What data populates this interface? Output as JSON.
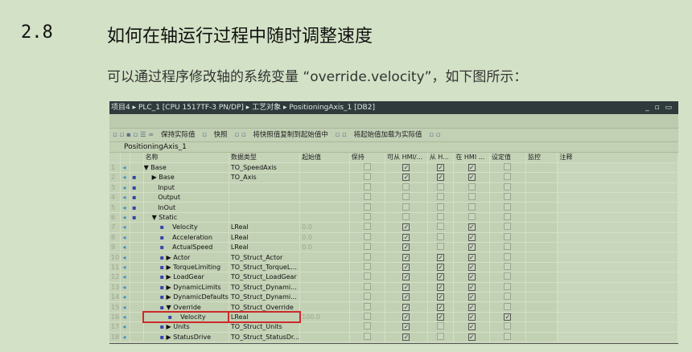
{
  "heading": {
    "number": "2.8",
    "title": "如何在轴运行过程中随时调整速度"
  },
  "paragraph": "可以通过程序修改轴的系统变量 “override.velocity”，如下图所示：",
  "screenshot": {
    "breadcrumb": "项目4 ▸ PLC_1 [CPU 1517TF-3 PN/DP] ▸ 工艺对象 ▸ PositioningAxis_1 [DB2]",
    "window_controls": "_ ▫ ▭",
    "toolbar": {
      "keep_actual": "保持实际值",
      "snapshot": "快照",
      "copy_snapshot": "将快照值复制到起始值中",
      "load_start": "将起始值加载为实际值"
    },
    "db_name": "PositioningAxis_1",
    "columns": [
      "名称",
      "数据类型",
      "起始值",
      "保持",
      "可从 HMI/...",
      "从 H...",
      "在 HMI ...",
      "设定值",
      "监控",
      "注释"
    ],
    "rows": [
      {
        "n": "1",
        "name": "Base",
        "type": "TO_SpeedAxis",
        "start": "",
        "lvl": 0,
        "exp": "▼",
        "dot": false,
        "hmi": [
          1,
          1,
          1
        ],
        "set": 0
      },
      {
        "n": "2",
        "name": "Base",
        "type": "TO_Axis",
        "start": "",
        "lvl": 1,
        "exp": "▶",
        "dot": true,
        "hmi": [
          1,
          1,
          1
        ],
        "set": 0
      },
      {
        "n": "3",
        "name": "Input",
        "type": "",
        "start": "",
        "lvl": 1,
        "exp": "",
        "dot": true,
        "hmi": [
          0,
          0,
          0
        ],
        "set": 0
      },
      {
        "n": "4",
        "name": "Output",
        "type": "",
        "start": "",
        "lvl": 1,
        "exp": "",
        "dot": true,
        "hmi": [
          0,
          0,
          0
        ],
        "set": 0
      },
      {
        "n": "5",
        "name": "InOut",
        "type": "",
        "start": "",
        "lvl": 1,
        "exp": "",
        "dot": true,
        "hmi": [
          0,
          0,
          0
        ],
        "set": 0
      },
      {
        "n": "6",
        "name": "Static",
        "type": "",
        "start": "",
        "lvl": 1,
        "exp": "▼",
        "dot": true,
        "hmi": [
          0,
          0,
          0
        ],
        "set": 0
      },
      {
        "n": "7",
        "name": "Velocity",
        "type": "LReal",
        "start": "0.0",
        "lvl": 2,
        "exp": "",
        "dot": true,
        "hmi": [
          1,
          0,
          1
        ],
        "set": 0
      },
      {
        "n": "8",
        "name": "Acceleration",
        "type": "LReal",
        "start": "0.0",
        "lvl": 2,
        "exp": "",
        "dot": true,
        "hmi": [
          1,
          0,
          1
        ],
        "set": 0
      },
      {
        "n": "9",
        "name": "ActualSpeed",
        "type": "LReal",
        "start": "0.0",
        "lvl": 2,
        "exp": "",
        "dot": true,
        "hmi": [
          1,
          0,
          1
        ],
        "set": 0
      },
      {
        "n": "10",
        "name": "Actor",
        "type": "TO_Struct_Actor",
        "start": "",
        "lvl": 2,
        "exp": "▶",
        "dot": true,
        "hmi": [
          1,
          1,
          1
        ],
        "set": 0
      },
      {
        "n": "11",
        "name": "TorqueLimiting",
        "type": "TO_Struct_TorqueL...",
        "start": "",
        "lvl": 2,
        "exp": "▶",
        "dot": true,
        "hmi": [
          1,
          1,
          1
        ],
        "set": 0
      },
      {
        "n": "12",
        "name": "LoadGear",
        "type": "TO_Struct_LoadGear",
        "start": "",
        "lvl": 2,
        "exp": "▶",
        "dot": true,
        "hmi": [
          1,
          1,
          1
        ],
        "set": 0
      },
      {
        "n": "13",
        "name": "DynamicLimits",
        "type": "TO_Struct_Dynami...",
        "start": "",
        "lvl": 2,
        "exp": "▶",
        "dot": true,
        "hmi": [
          1,
          1,
          1
        ],
        "set": 0
      },
      {
        "n": "14",
        "name": "DynamicDefaults",
        "type": "TO_Struct_Dynami...",
        "start": "",
        "lvl": 2,
        "exp": "▶",
        "dot": true,
        "hmi": [
          1,
          1,
          1
        ],
        "set": 0
      },
      {
        "n": "15",
        "name": "Override",
        "type": "TO_Struct_Override",
        "start": "",
        "lvl": 2,
        "exp": "▼",
        "dot": true,
        "hmi": [
          1,
          1,
          1
        ],
        "set": 0
      },
      {
        "n": "16",
        "name": "Velocity",
        "type": "LReal",
        "start": "100.0",
        "lvl": 3,
        "exp": "",
        "dot": true,
        "hmi": [
          1,
          1,
          1
        ],
        "set": 1,
        "selected": true
      },
      {
        "n": "17",
        "name": "Units",
        "type": "TO_Struct_Units",
        "start": "",
        "lvl": 2,
        "exp": "▶",
        "dot": true,
        "hmi": [
          1,
          0,
          1
        ],
        "set": 0
      },
      {
        "n": "18",
        "name": "StatusDrive",
        "type": "TO_Struct_StatusDr...",
        "start": "",
        "lvl": 2,
        "exp": "▶",
        "dot": true,
        "hmi": [
          1,
          0,
          1
        ],
        "set": 0
      }
    ]
  },
  "colors": {
    "page_bg": "#d3e2c6",
    "title_bar": "#2f3a3c",
    "highlight": "#cc2a2a"
  }
}
